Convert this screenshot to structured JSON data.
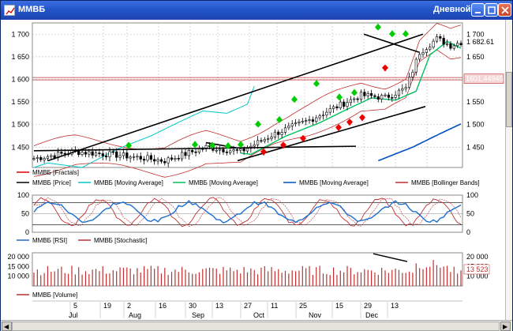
{
  "window": {
    "title": "ММВБ",
    "period": "Дневной"
  },
  "colors": {
    "price": "#000000",
    "ma_slow": "#00c8c8",
    "ma_fast": "#00c060",
    "ma_long": "#0050c0",
    "bollinger": "#c03030",
    "fractal_up": "#00cc00",
    "fractal_down": "#ee0000",
    "rsi": "#1a6fd0",
    "stochastic": "#c03030",
    "volume": "#c03030",
    "hline": "#c03030",
    "grid": "#c8c8c8"
  },
  "price_panel": {
    "y_ticks": [
      "1 700",
      "1 650",
      "1 600",
      "1 550",
      "1 500",
      "1 450"
    ],
    "right_ticks": [
      "1 700",
      "1 650",
      "1 550",
      "1 500",
      "1 450"
    ],
    "last_price_label": "1 682.61",
    "hline_label": "1601.44945",
    "legend": [
      {
        "label": "ММВБ [Fractals]",
        "color": "#e00000"
      },
      {
        "label": "ММВБ [Price]",
        "color": "#000000"
      },
      {
        "label": "ММВБ [Moving Average]",
        "color": "#00c8c8"
      },
      {
        "label": "ММВБ [Moving Average]",
        "color": "#00c060"
      },
      {
        "label": "ММВБ [Moving Average]",
        "color": "#0050c0"
      },
      {
        "label": "ММВБ [Bollinger Bands]",
        "color": "#c03030"
      }
    ]
  },
  "osc_panel": {
    "left_ticks": [
      "100",
      "50",
      "0"
    ],
    "right_ticks": [
      "100",
      "50",
      "0"
    ],
    "legend": [
      {
        "label": "ММВБ [RSI]",
        "color": "#1a6fd0"
      },
      {
        "label": "ММВБ [Stochastic]",
        "color": "#c03030"
      }
    ]
  },
  "volume_panel": {
    "left_ticks": [
      "20 000",
      "15 000",
      "10 000"
    ],
    "right_ticks": [
      "20 000",
      "15 000",
      "10 000"
    ],
    "last_volume_label": "13 523",
    "legend": [
      {
        "label": "ММВБ [Volume]",
        "color": "#c03030"
      }
    ]
  },
  "time_axis": {
    "days": [
      "5",
      "19",
      "2",
      "16",
      "30",
      "13",
      "27",
      "11",
      "25",
      "15",
      "29",
      "13"
    ],
    "months": [
      "Jul",
      "Aug",
      "Sep",
      "Oct",
      "Nov",
      "Dec"
    ]
  },
  "chart_data": {
    "type": "candlestick",
    "price_range": [
      1405,
      1725
    ],
    "oscillator_range": [
      0,
      100
    ],
    "volume_range": [
      5000,
      22000
    ],
    "hline_value": 1601.44945,
    "last_price": 1682.61,
    "last_volume": 13523,
    "months": [
      "Jul",
      "Aug",
      "Sep",
      "Oct",
      "Nov",
      "Dec"
    ],
    "day_labels": [
      "5",
      "19",
      "2",
      "16",
      "30",
      "13",
      "27",
      "11",
      "25",
      "15",
      "29",
      "13"
    ]
  }
}
